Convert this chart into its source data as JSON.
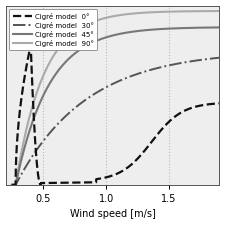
{
  "title": "",
  "xlabel": "Wind speed [m/s]",
  "ylabel": "",
  "xlim": [
    0.2,
    1.9
  ],
  "ylim": [
    0.0,
    1.0
  ],
  "xticks": [
    0.5,
    1.0,
    1.5
  ],
  "yticks": [],
  "legend_entries": [
    {
      "label": "Cigré model  0°",
      "color": "#111111",
      "linestyle": "dashed",
      "linewidth": 1.6
    },
    {
      "label": "Cigré model  30°",
      "color": "#555555",
      "linestyle": "dashdot",
      "linewidth": 1.4
    },
    {
      "label": "Cigré model  45°",
      "color": "#777777",
      "linestyle": "solid",
      "linewidth": 1.5
    },
    {
      "label": "Cigré model  90°",
      "color": "#aaaaaa",
      "linestyle": "solid",
      "linewidth": 1.5
    }
  ],
  "grid_color": "#bbbbbb",
  "background": "#eeeeee"
}
